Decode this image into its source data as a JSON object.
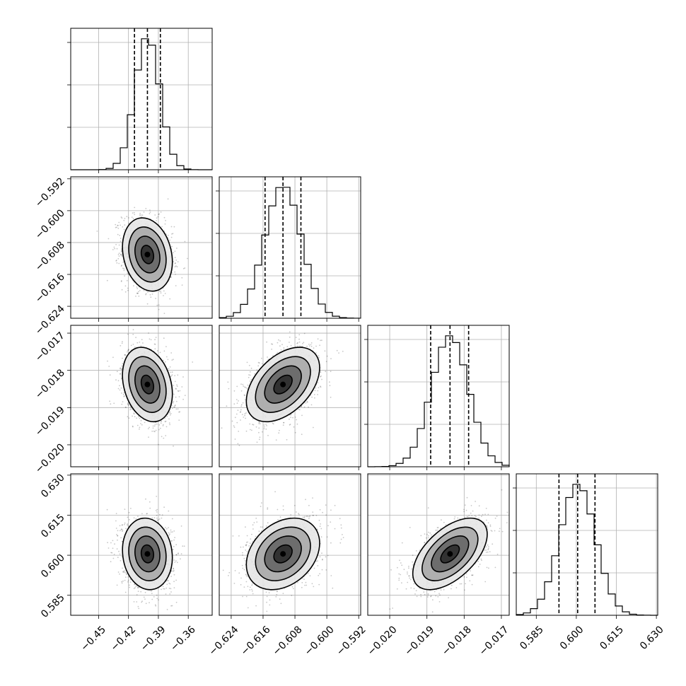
{
  "chart_data": {
    "type": "corner",
    "parameters": [
      {
        "xlim": [
          -0.478,
          -0.336
        ],
        "ticks": [
          "−0.45",
          "−0.42",
          "−0.39",
          "−0.36"
        ],
        "tick_values": [
          -0.45,
          -0.42,
          -0.39,
          -0.36
        ],
        "quantiles": [
          -0.414,
          -0.401,
          -0.388
        ],
        "hist_peak": -0.401,
        "hist_sigma": 0.0125
      },
      {
        "xlim": [
          -0.627,
          -0.5915
        ],
        "ticks": [
          "−0.624",
          "−0.616",
          "−0.608",
          "−0.600",
          "−0.592"
        ],
        "tick_values": [
          -0.624,
          -0.616,
          -0.608,
          -0.6,
          -0.592
        ],
        "quantiles": [
          -0.6155,
          -0.611,
          -0.6065
        ],
        "hist_peak": -0.611,
        "hist_sigma": 0.0046
      },
      {
        "xlim": [
          -0.02059,
          -0.01679
        ],
        "ticks": [
          "−0.020",
          "−0.019",
          "−0.018",
          "−0.017"
        ],
        "tick_values": [
          -0.02,
          -0.019,
          -0.018,
          -0.017
        ],
        "quantiles": [
          -0.0189,
          -0.01838,
          -0.01788
        ],
        "hist_peak": -0.01838,
        "hist_sigma": 0.0005
      },
      {
        "xlim": [
          0.5775,
          0.6305
        ],
        "ticks": [
          "0.585",
          "0.600",
          "0.615",
          "0.630"
        ],
        "tick_values": [
          0.585,
          0.6,
          0.615,
          0.63
        ],
        "quantiles": [
          0.5935,
          0.6005,
          0.607
        ],
        "hist_peak": 0.6005,
        "hist_sigma": 0.0067
      }
    ],
    "y_axes": [
      null,
      {
        "ylim": [
          -0.627,
          -0.5915
        ],
        "ticks": [
          "−0.592",
          "−0.600",
          "−0.608",
          "−0.616",
          "−0.624"
        ],
        "tick_values": [
          -0.592,
          -0.6,
          -0.608,
          -0.616,
          -0.624
        ]
      },
      {
        "ylim": [
          -0.02059,
          -0.01679
        ],
        "ticks": [
          "−0.017",
          "−0.018",
          "−0.019",
          "−0.020"
        ],
        "tick_values": [
          -0.017,
          -0.018,
          -0.019,
          -0.02
        ]
      },
      {
        "ylim": [
          0.5775,
          0.6305
        ],
        "ticks": [
          "0.630",
          "0.615",
          "0.600",
          "0.585"
        ],
        "tick_values": [
          0.63,
          0.615,
          0.6,
          0.585
        ]
      }
    ],
    "correlations": {
      "1-0": -0.2,
      "2-0": -0.25,
      "2-1": 0.45,
      "3-0": -0.1,
      "3-1": 0.3,
      "3-2": 0.55
    },
    "contour_levels_sigma": [
      0.5,
      1.0,
      1.5,
      2.0
    ],
    "grid": true
  }
}
